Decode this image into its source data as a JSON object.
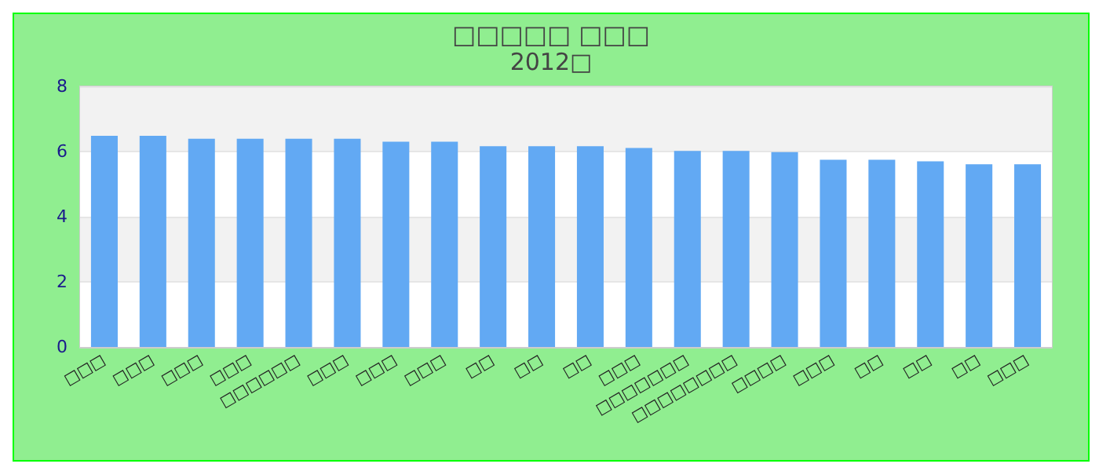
{
  "chart_data": {
    "type": "bar",
    "title": "□□□□□ □□□",
    "subtitle": "2012□",
    "categories": [
      "□□□",
      "□□□",
      "□□□",
      "□□□",
      "□□□□□□",
      "□□□",
      "□□□",
      "□□□",
      "□□",
      "□□",
      "□□",
      "□□□",
      "□□□□□□□",
      "□□□□□□□□",
      "□□□□",
      "□□□",
      "□□",
      "□□",
      "□□",
      "□□□"
    ],
    "values": [
      6.48,
      6.48,
      6.39,
      6.39,
      6.39,
      6.39,
      6.3,
      6.3,
      6.16,
      6.16,
      6.16,
      6.11,
      6.02,
      6.02,
      5.98,
      5.75,
      5.75,
      5.7,
      5.61,
      5.61
    ],
    "color": "#62a9f3",
    "ylim": [
      0,
      8
    ],
    "yticks": [
      0,
      2,
      4,
      6,
      8
    ],
    "grid": "y"
  }
}
